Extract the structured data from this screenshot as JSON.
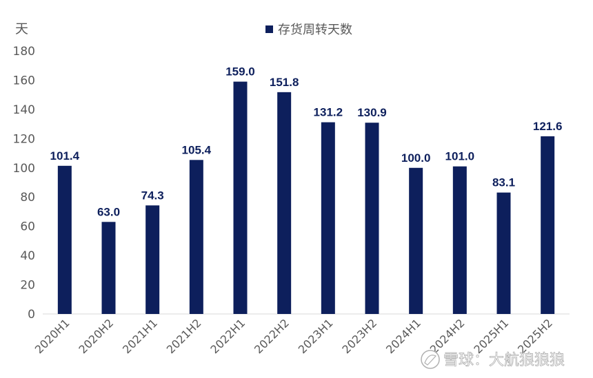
{
  "chart_data": {
    "type": "bar",
    "y_unit": "天",
    "series": [
      {
        "name": "存货周转天数",
        "values": [
          101.4,
          63.0,
          74.3,
          105.4,
          159.0,
          151.8,
          131.2,
          130.9,
          100.0,
          101.0,
          83.1,
          121.6
        ]
      }
    ],
    "categories": [
      "2020H1",
      "2020H2",
      "2021H1",
      "2021H2",
      "2022H1",
      "2022H2",
      "2023H1",
      "2023H2",
      "2024H1",
      "2024H2",
      "2025H1",
      "2025H2"
    ],
    "value_labels": [
      "101.4",
      "63.0",
      "74.3",
      "105.4",
      "159.0",
      "151.8",
      "131.2",
      "130.9",
      "100.0",
      "101.0",
      "83.1",
      "121.6"
    ],
    "ylim": [
      0,
      180
    ],
    "yticks": [
      0,
      20,
      40,
      60,
      80,
      100,
      120,
      140,
      160,
      180
    ],
    "grid": false,
    "legend_position": "top-center",
    "bar_color": "#0d1f5c"
  },
  "watermark": {
    "text": "雪球：大航狼狼狼"
  }
}
